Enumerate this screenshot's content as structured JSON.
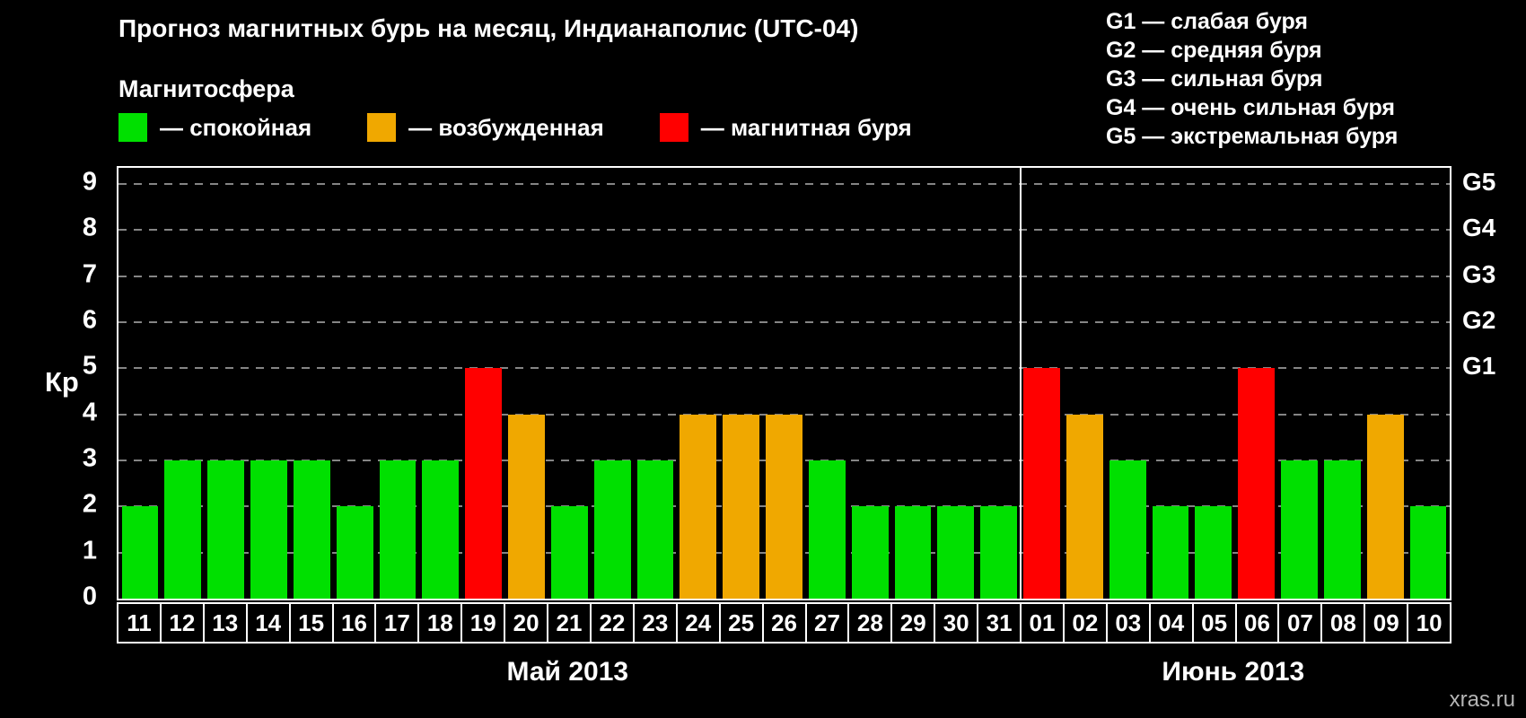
{
  "title": "Прогноз магнитных бурь на месяц, Индианаполис (UTC-04)",
  "legend": {
    "header": "Магнитосфера",
    "items": [
      {
        "name": "quiet",
        "color": "#00e000",
        "label": "— спокойная"
      },
      {
        "name": "excited",
        "color": "#f0a800",
        "label": "— возбужденная"
      },
      {
        "name": "storm",
        "color": "#ff0000",
        "label": "— магнитная буря"
      }
    ]
  },
  "g_legend": [
    "G1 — слабая буря",
    "G2 — средняя буря",
    "G3 — сильная буря",
    "G4 — очень сильная буря",
    "G5 — экстремальная буря"
  ],
  "watermark": "xras.ru",
  "chart_data": {
    "type": "bar",
    "title": "Прогноз магнитных бурь на месяц, Индианаполис (UTC-04)",
    "ylabel": "Кр",
    "ylim": [
      0,
      9
    ],
    "axis_max": 9.35,
    "yticks": [
      0,
      1,
      2,
      3,
      4,
      5,
      6,
      7,
      8,
      9
    ],
    "grid": "dashed horizontal lines at each integer Kp level",
    "legend_position": "top",
    "right_axis": [
      {
        "label": "G1",
        "value": 5
      },
      {
        "label": "G2",
        "value": 6
      },
      {
        "label": "G3",
        "value": 7
      },
      {
        "label": "G4",
        "value": 8
      },
      {
        "label": "G5",
        "value": 9
      }
    ],
    "categories": [
      "11",
      "12",
      "13",
      "14",
      "15",
      "16",
      "17",
      "18",
      "19",
      "20",
      "21",
      "22",
      "23",
      "24",
      "25",
      "26",
      "27",
      "28",
      "29",
      "30",
      "31",
      "01",
      "02",
      "03",
      "04",
      "05",
      "06",
      "07",
      "08",
      "09",
      "10"
    ],
    "values": [
      2,
      3,
      3,
      3,
      3,
      2,
      3,
      3,
      5,
      4,
      2,
      3,
      3,
      4,
      4,
      4,
      3,
      2,
      2,
      2,
      2,
      5,
      4,
      3,
      2,
      2,
      5,
      3,
      3,
      4,
      2
    ],
    "months": [
      {
        "label": "Май 2013",
        "days": 21
      },
      {
        "label": "Июнь 2013",
        "days": 10
      }
    ],
    "color_rules": [
      {
        "min": 5,
        "color": "#ff0000",
        "meaning": "магнитная буря"
      },
      {
        "min": 4,
        "color": "#f0a800",
        "meaning": "возбужденная"
      },
      {
        "min": 0,
        "color": "#00e000",
        "meaning": "спокойная"
      }
    ]
  }
}
